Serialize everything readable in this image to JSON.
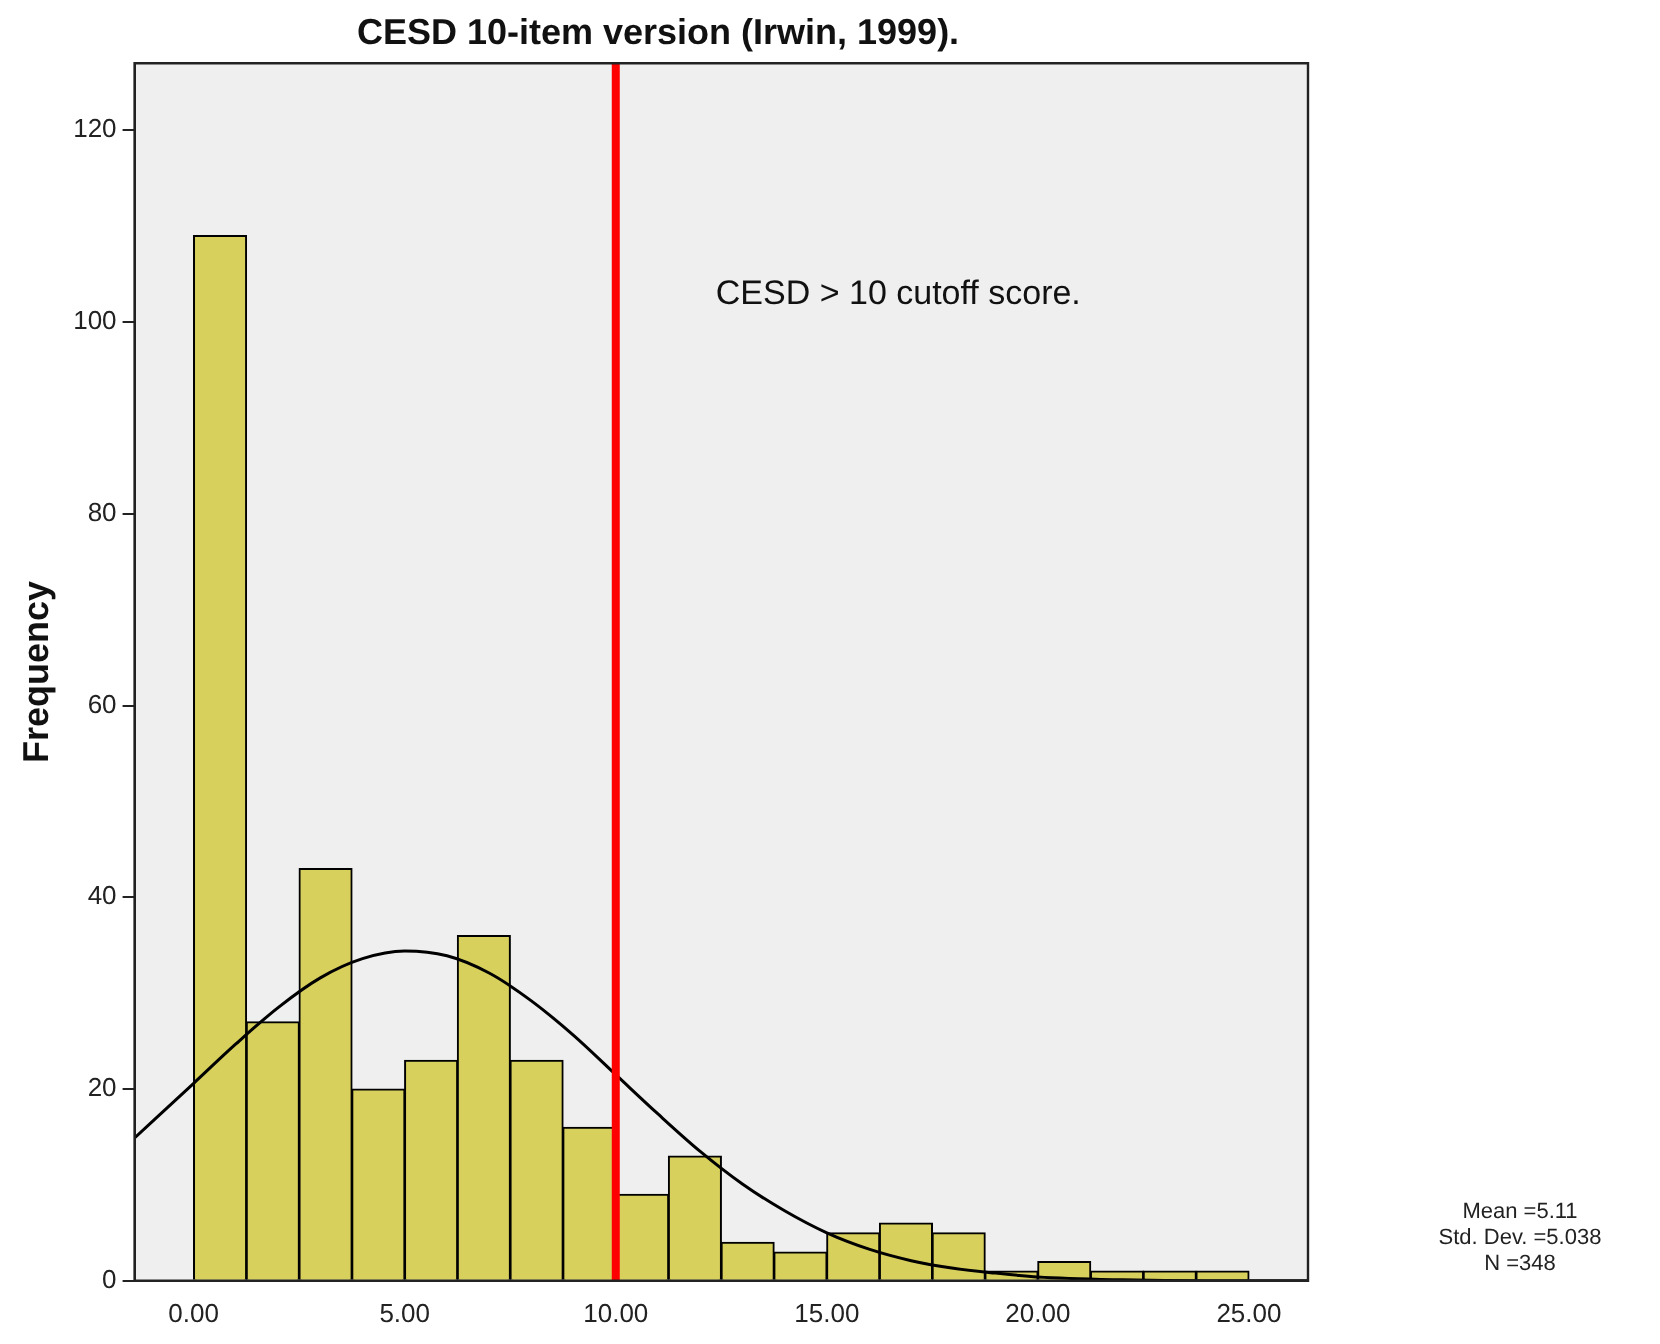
{
  "chart_data": {
    "type": "histogram",
    "title": "CESD 10-item version (Irwin, 1999).",
    "ylabel": "Frequency",
    "bins": [
      0,
      1.25,
      2.5,
      3.75,
      5,
      6.25,
      7.5,
      8.75,
      10,
      11.25,
      12.5,
      13.75,
      15,
      16.25,
      17.5,
      18.75,
      20,
      21.25,
      22.5,
      23.75,
      25
    ],
    "values": [
      109,
      27,
      43,
      20,
      23,
      36,
      23,
      16,
      9,
      13,
      4,
      3,
      5,
      6,
      5,
      1,
      2,
      1,
      1,
      1
    ],
    "color": "#d8d05c",
    "series": [
      {
        "type": "line",
        "color": "#000000",
        "x": [
          -1.4,
          0,
          1,
          2,
          3,
          4,
          5,
          6,
          7,
          8,
          9,
          10,
          11,
          12,
          13,
          14,
          15,
          16,
          17,
          18,
          19,
          20,
          22,
          24,
          26.4
        ],
        "values": [
          14.9,
          20.6,
          24.7,
          28.5,
          31.6,
          33.6,
          34.4,
          33.9,
          32.1,
          29.2,
          25.6,
          21.5,
          17.4,
          13.5,
          10.1,
          7.3,
          5.0,
          3.3,
          2.1,
          1.3,
          0.8,
          0.4,
          0.1,
          0,
          0
        ]
      }
    ],
    "ref_lines": [
      {
        "axis": "x",
        "value": 10,
        "label": "CESD > 10 cutoff score.",
        "color": "#ff0000"
      }
    ],
    "annotations": [
      "Mean =5.11",
      "Std. Dev. =5.038",
      "N =348"
    ],
    "xlim": [
      -1.4,
      26.4
    ],
    "ylim": [
      0,
      127
    ],
    "xticks": [
      {
        "value": 0,
        "label": "0.00"
      },
      {
        "value": 5,
        "label": "5.00"
      },
      {
        "value": 10,
        "label": "10.00"
      },
      {
        "value": 15,
        "label": "15.00"
      },
      {
        "value": 20,
        "label": "20.00"
      },
      {
        "value": 25,
        "label": "25.00"
      }
    ],
    "yticks": [
      0,
      20,
      40,
      60,
      80,
      100,
      120
    ],
    "grid": false,
    "legend": false,
    "marker": "none"
  }
}
